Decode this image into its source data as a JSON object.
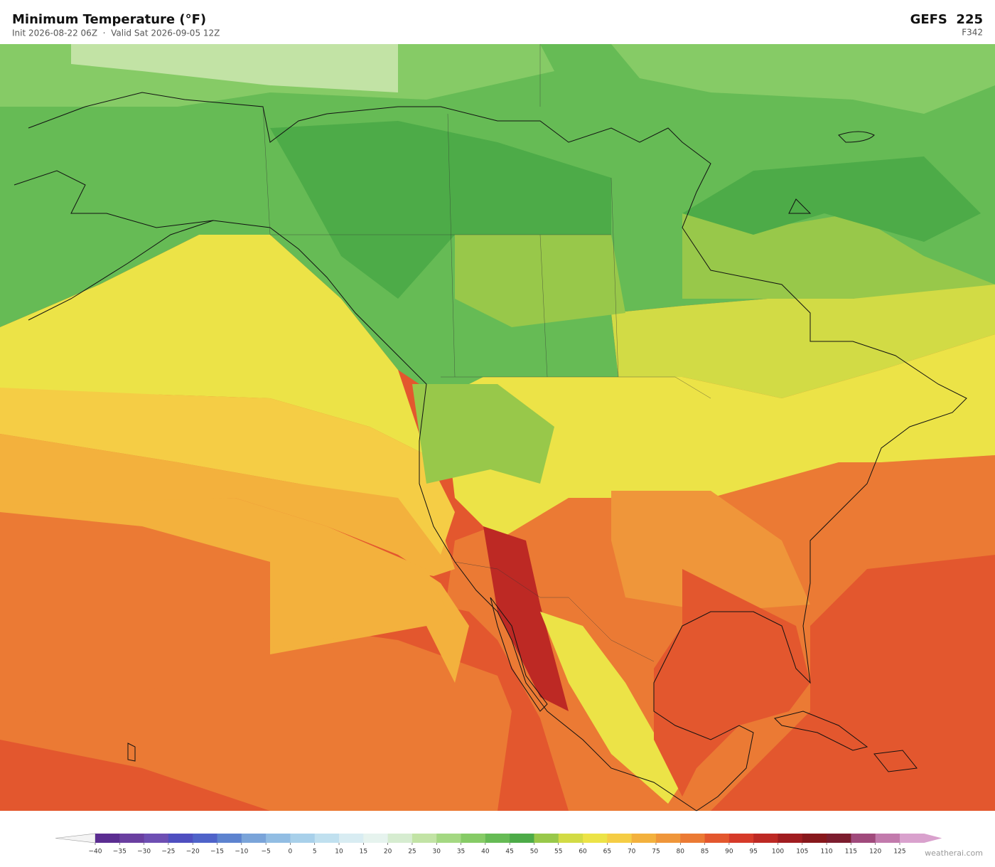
{
  "header": {
    "title": "Minimum Temperature  (°F)",
    "subtitle": "Init 2026-08-22 06Z  ·  Valid Sat 2026-09-05 12Z",
    "model": "GEFS  225",
    "forecast_hour": "F342"
  },
  "colorbar": {
    "ticks": [
      {
        "value": -40,
        "label": "−40"
      },
      {
        "value": -35,
        "label": "−35"
      },
      {
        "value": -30,
        "label": "−30"
      },
      {
        "value": -25,
        "label": "−25"
      },
      {
        "value": -20,
        "label": "−20"
      },
      {
        "value": -15,
        "label": "−15"
      },
      {
        "value": -10,
        "label": "−10"
      },
      {
        "value": -5,
        "label": "−5"
      },
      0,
      5,
      10,
      15,
      20,
      25,
      30,
      35,
      40,
      45,
      50,
      55,
      60,
      65,
      70,
      75,
      80,
      85,
      90,
      95,
      100,
      105,
      110,
      115,
      120,
      125
    ],
    "colors": [
      "#5b2d91",
      "#6a3fa0",
      "#6e4fb3",
      "#4f4fc0",
      "#4f63c9",
      "#5d83cf",
      "#7aa4d9",
      "#92bde3",
      "#a8d0ea",
      "#c0e0ef",
      "#d8ecf2",
      "#e6f3ee",
      "#d6ecd0",
      "#c2e3a5",
      "#a4d882",
      "#86cb66",
      "#66bb55",
      "#4dab48",
      "#98c84a",
      "#d2db45",
      "#ece347",
      "#f5cd45",
      "#f3b13d",
      "#ef963a",
      "#eb7a34",
      "#e3572e",
      "#d63a29",
      "#bd2924",
      "#a01d20",
      "#87181c",
      "#7c1d2e",
      "#a04a7c",
      "#c27aac",
      "#d9a1cd"
    ]
  },
  "watermark": "weatherai.com"
}
